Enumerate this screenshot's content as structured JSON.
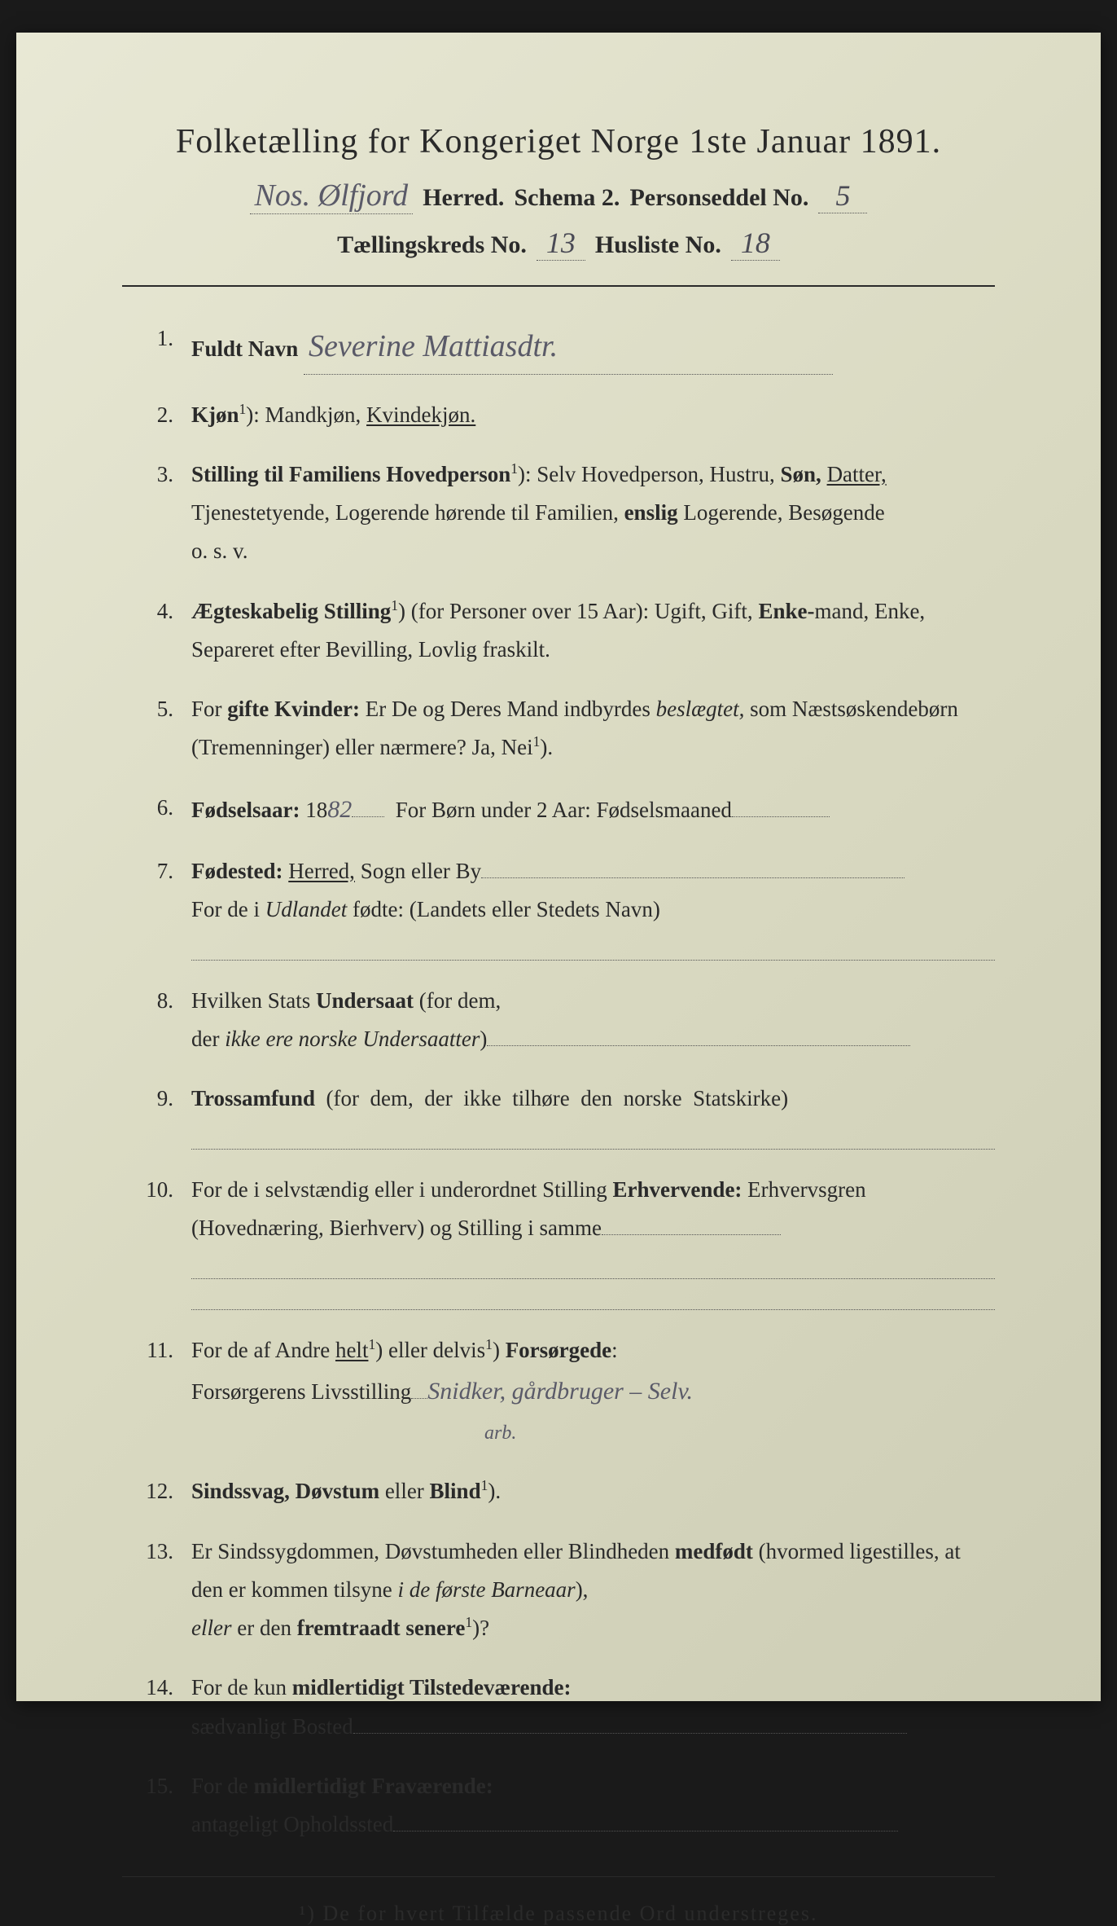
{
  "header": {
    "title": "Folketælling for Kongeriget Norge 1ste Januar 1891.",
    "herred_hw": "Nos. Ølfjord",
    "herred_label": "Herred.",
    "schema": "Schema 2.",
    "personseddel_label": "Personseddel No.",
    "personseddel_no": "5",
    "kreds_label": "Tællingskreds No.",
    "kreds_no": "13",
    "husliste_label": "Husliste No.",
    "husliste_no": "18"
  },
  "items": [
    {
      "n": "1.",
      "label": "Fuldt Navn",
      "hw": "Severine Mattiasdtr."
    },
    {
      "n": "2.",
      "html": "<span class='bold'>Kjøn</span><span class='sup'>1</span>): Mandkjøn, <span class='underline'>Kvindekjøn.</span>"
    },
    {
      "n": "3.",
      "html": "<span class='bold'>Stilling til Familiens Hovedperson</span><span class='sup'>1</span>): Selv Hovedperson, Hustru, <span class='bold'>Søn,</span> <span class='underline'>Datter,</span> Tjenestetyende, Logerende hørende til Familien, <span class='bold'>enslig</span> Logerende, Besøgende<br>o. s. v."
    },
    {
      "n": "4.",
      "html": "<span class='bold'>Ægteskabelig Stilling</span><span class='sup'>1</span>) (for Personer over 15 Aar): Ugift, Gift, <span class='bold'>Enke-</span>mand, Enke, Separeret efter Bevilling, Lovlig fraskilt."
    },
    {
      "n": "5.",
      "html": "For <span class='bold'>gifte Kvinder:</span> Er De og Deres Mand indbyrdes <span class='italic'>beslægtet,</span> som Næstsøskendebørn (Tremenninger) eller nærmere? Ja, Nei<span class='sup'>1</span>)."
    },
    {
      "n": "6.",
      "html": "<span class='bold'>Fødselsaar:</span> 18<span class='hw-inline'>82</span><span class='dotted-line' style='min-width:40px'></span>&nbsp;&nbsp;For Børn under 2 Aar: Fødselsmaaned<span class='dotted-line' style='min-width:120px'></span>"
    },
    {
      "n": "7.",
      "html": "<span class='bold'>Fødested:</span> <span class='underline'>Herred,</span> Sogn eller By<span class='dotted-line' style='min-width:520px'></span><br>For de i <span class='italic'>Udlandet</span> fødte: (Landets eller Stedets Navn)<div class='dotted-fill'></div>"
    },
    {
      "n": "8.",
      "html": "Hvilken Stats <span class='bold'>Undersaat</span> (for dem,<br>der <span class='italic'>ikke ere norske Undersaatter</span>)<span class='dotted-line' style='min-width:520px'></span>"
    },
    {
      "n": "9.",
      "html": "<span class='bold'>Trossamfund</span>&nbsp;&nbsp;(for&nbsp;&nbsp;dem,&nbsp;&nbsp;der&nbsp;&nbsp;ikke&nbsp;&nbsp;tilhøre&nbsp;&nbsp;den&nbsp;&nbsp;norske&nbsp;&nbsp;Statskirke)<div class='dotted-fill'></div>"
    },
    {
      "n": "10.",
      "html": "For de i selvstændig eller i underordnet Stilling <span class='bold'>Erhvervende:</span> Erhvervsgren (Hovednæring, Bierhverv) og Stilling i samme<span class='dotted-line' style='min-width:220px'></span><div class='dotted-fill'></div><div class='dotted-fill'></div>"
    },
    {
      "n": "11.",
      "html": "For de af Andre <span class='underline'>helt</span><span class='sup'>1</span>) eller delvis<span class='sup'>1</span>) <span class='bold'>Forsørgede</span>:<br>Forsørgerens Livsstilling<span class='dotted-line' style='min-width:20px'></span><span class='hw-inline'>Snidker, gårdbruger – Selv.</span><br><span style='display:inline-block;width:360px'></span><span class='hw-small'>arb.</span>"
    },
    {
      "n": "12.",
      "html": "<span class='bold'>Sindssvag, Døvstum</span> eller <span class='bold'>Blind</span><span class='sup'>1</span>)."
    },
    {
      "n": "13.",
      "html": "Er Sindssygdommen, Døvstumheden eller Blindheden <span class='bold'>medfødt</span> (hvormed ligestilles, at den er kommen tilsyne <span class='italic'>i de første Barneaar</span>),<br><span class='italic'>eller</span> er den <span class='bold'>fremtraadt senere</span><span class='sup'>1</span>)?"
    },
    {
      "n": "14.",
      "html": "For de kun <span class='bold'>midlertidigt Tilstedeværende:</span><br>sædvanligt Bosted<span class='dotted-line' style='min-width:680px'></span>"
    },
    {
      "n": "15.",
      "html": "For de <span class='bold'>midlertidigt Fraværende:</span><br>antageligt Opholdssted<span class='dotted-line' style='min-width:620px'></span>"
    }
  ],
  "footnote": "¹) De for hvert Tilfælde passende Ord understreges."
}
